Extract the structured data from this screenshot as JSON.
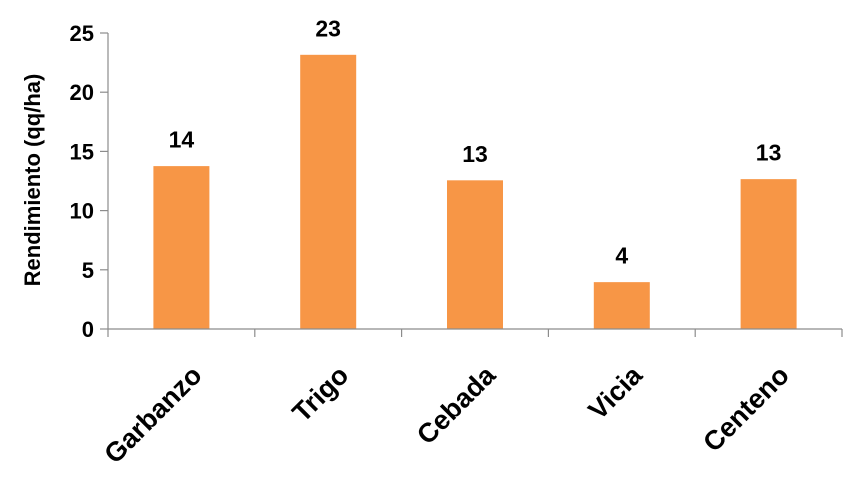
{
  "chart_data": {
    "type": "bar",
    "categories": [
      "Garbanzo",
      "Trigo",
      "Cebada",
      "Vicia",
      "Centeno"
    ],
    "values": [
      13.8,
      23.2,
      12.6,
      4.0,
      12.7
    ],
    "data_labels": [
      "14",
      "23",
      "13",
      "4",
      "13"
    ],
    "title": "",
    "xlabel": "",
    "ylabel": "Rendimiento (qq/ha)",
    "ylim": [
      0,
      25
    ],
    "yticks": [
      "0",
      "5",
      "10",
      "15",
      "20",
      "25"
    ],
    "grid": false,
    "legend": "none",
    "bar_color": "#F79646"
  }
}
